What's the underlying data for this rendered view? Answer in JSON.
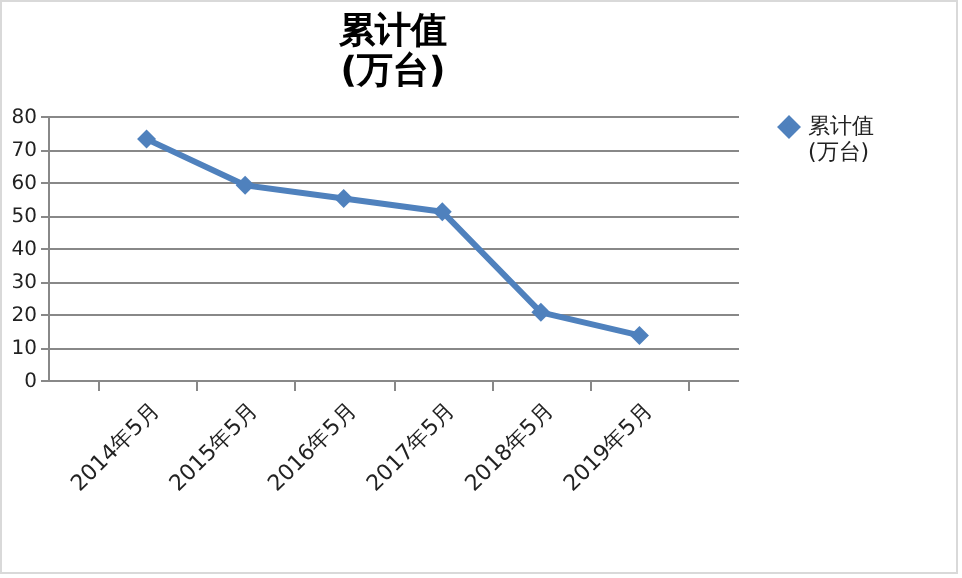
{
  "chart_data": {
    "type": "line",
    "title": "累计值\n(万台)",
    "categories": [
      "2014年5月",
      "2015年5月",
      "2016年5月",
      "2017年5月",
      "2018年5月",
      "2019年5月"
    ],
    "series": [
      {
        "name": "累计值\n(万台)",
        "color": "#4f81bd",
        "values": [
          73,
          59,
          55,
          51,
          20.5,
          13.5
        ]
      }
    ],
    "ylim": [
      0,
      80
    ],
    "yticks": [
      0,
      10,
      20,
      30,
      40,
      50,
      60,
      70,
      80
    ],
    "grid": "y",
    "legend": "right",
    "marker": "diamond",
    "line_style": "solid"
  }
}
